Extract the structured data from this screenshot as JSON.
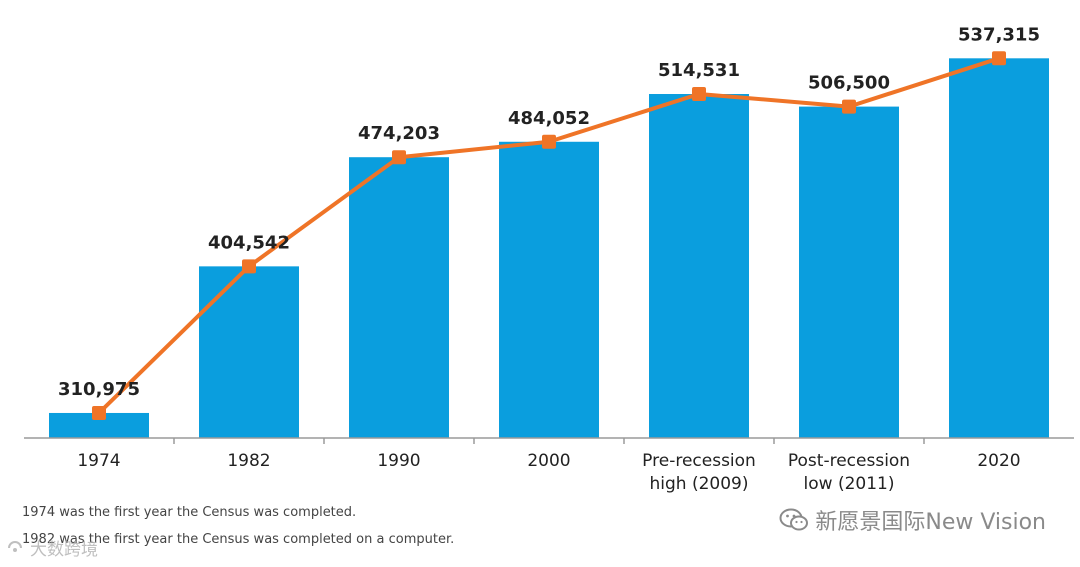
{
  "chart_data": {
    "type": "bar+line",
    "categories": [
      [
        "1974"
      ],
      [
        "1982"
      ],
      [
        "1990"
      ],
      [
        "2000"
      ],
      [
        "Pre-recession",
        "high (2009)"
      ],
      [
        "Post-recession",
        "low (2011)"
      ],
      [
        "2020"
      ]
    ],
    "values": [
      310975,
      404542,
      474203,
      484052,
      514531,
      506500,
      537315
    ],
    "value_labels": [
      "310,975",
      "404,542",
      "474,203",
      "484,052",
      "514,531",
      "506,500",
      "537,315"
    ],
    "ylim": [
      295000,
      549000
    ],
    "colors": {
      "bar": "#0a9ede",
      "line": "#ef7427",
      "axis": "#9a9a9a"
    },
    "title": "",
    "xlabel": "",
    "ylabel": ""
  },
  "footnotes": [
    "1974 was the first year the Census was completed.",
    "1982 was the first year the Census was completed on a computer."
  ],
  "watermark": {
    "text": "新愿景国际New Vision",
    "icon": "wechat-icon"
  },
  "watermark_2": {
    "text": "大数跨境",
    "icon": "logo-mark-icon"
  }
}
